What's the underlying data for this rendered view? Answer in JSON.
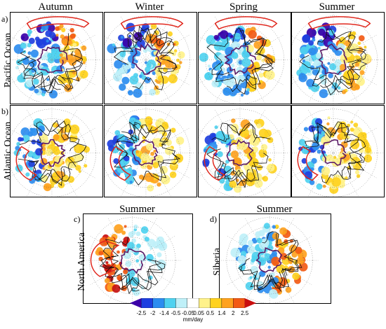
{
  "columns": {
    "autumn": "Autumn",
    "winter": "Winter",
    "spring": "Spring",
    "summer": "Summer"
  },
  "rows": {
    "a": {
      "letter": "a)",
      "label": "Pacific Ocean"
    },
    "b": {
      "letter": "b)",
      "label": "Atlantic Ocean"
    }
  },
  "bottom": {
    "c": {
      "letter": "c)",
      "label": "North America",
      "title": "Summer"
    },
    "d": {
      "letter": "d)",
      "label": "Siberia",
      "title": "Summer"
    }
  },
  "colorbar": {
    "ticks": [
      "-2.5",
      "-2",
      "-1.4",
      "-0.5",
      "-0.05",
      "0.05",
      "0.5",
      "1.4",
      "2",
      "2.5"
    ],
    "unit": "mm/day",
    "colors": [
      "#3b00a8",
      "#1e3fe0",
      "#2c8df0",
      "#4fd2f0",
      "#bff0f8",
      "#ffffff",
      "#fff28a",
      "#ffd21e",
      "#ffa21e",
      "#f35a14",
      "#c90e0e"
    ]
  }
}
